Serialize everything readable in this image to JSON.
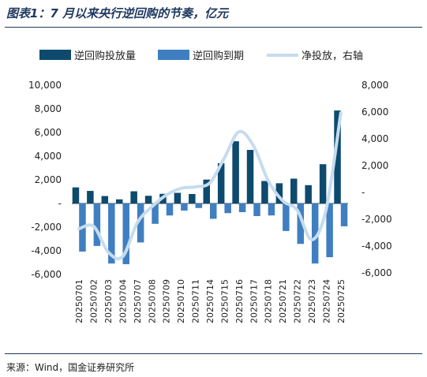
{
  "header": {
    "title": "图表1：7 月以来央行逆回购的节奏，亿元"
  },
  "footer": {
    "source": "来源：Wind，国金证券研究所"
  },
  "colors": {
    "reverse_repo": "#0d4a6e",
    "maturity": "#3f7fc1",
    "net_injection": "#c6dcef",
    "axis": "#444444"
  },
  "chart_data": {
    "type": "bar",
    "categories": [
      "20250701",
      "20250702",
      "20250703",
      "20250704",
      "20250707",
      "20250708",
      "20250709",
      "20250710",
      "20250711",
      "20250714",
      "20250715",
      "20250716",
      "20250717",
      "20250718",
      "20250721",
      "20250722",
      "20250723",
      "20250724",
      "20250725"
    ],
    "series": [
      {
        "name": "逆回购投放量",
        "type": "bar",
        "axis": "left",
        "values": [
          1360,
          1063,
          630,
          350,
          1030,
          650,
          815,
          900,
          800,
          2020,
          3405,
          5260,
          4530,
          1900,
          1710,
          2100,
          1550,
          3320,
          7860
        ]
      },
      {
        "name": "逆回购到期",
        "type": "bar",
        "axis": "left",
        "values": [
          -4065,
          -3590,
          -5075,
          -5133,
          -3293,
          -1720,
          -1013,
          -598,
          -383,
          -1295,
          -817,
          -732,
          -1064,
          -1011,
          -2326,
          -3417,
          -5075,
          -4538,
          -1930
        ]
      },
      {
        "name": "净投放，右轴",
        "type": "line",
        "axis": "right",
        "values": [
          -2705,
          -2527,
          -4445,
          -4783,
          -2263,
          -1070,
          -198,
          302,
          417,
          725,
          2588,
          4528,
          3466,
          889,
          -616,
          -1317,
          -3525,
          -1218,
          5930
        ]
      }
    ],
    "left_axis": {
      "ylim": [
        -6000,
        10000
      ],
      "ticks": [
        "10,000",
        "8,000",
        "6,000",
        "4,000",
        "2,000",
        "-",
        "-2,000",
        "-4,000",
        "-6,000"
      ]
    },
    "right_axis": {
      "ylim": [
        -6000,
        8000
      ],
      "ticks": [
        "8,000",
        "6,000",
        "4,000",
        "2,000",
        "-",
        "-2,000",
        "-4,000",
        "-6,000"
      ]
    },
    "grid": false,
    "legend_position": "top"
  }
}
